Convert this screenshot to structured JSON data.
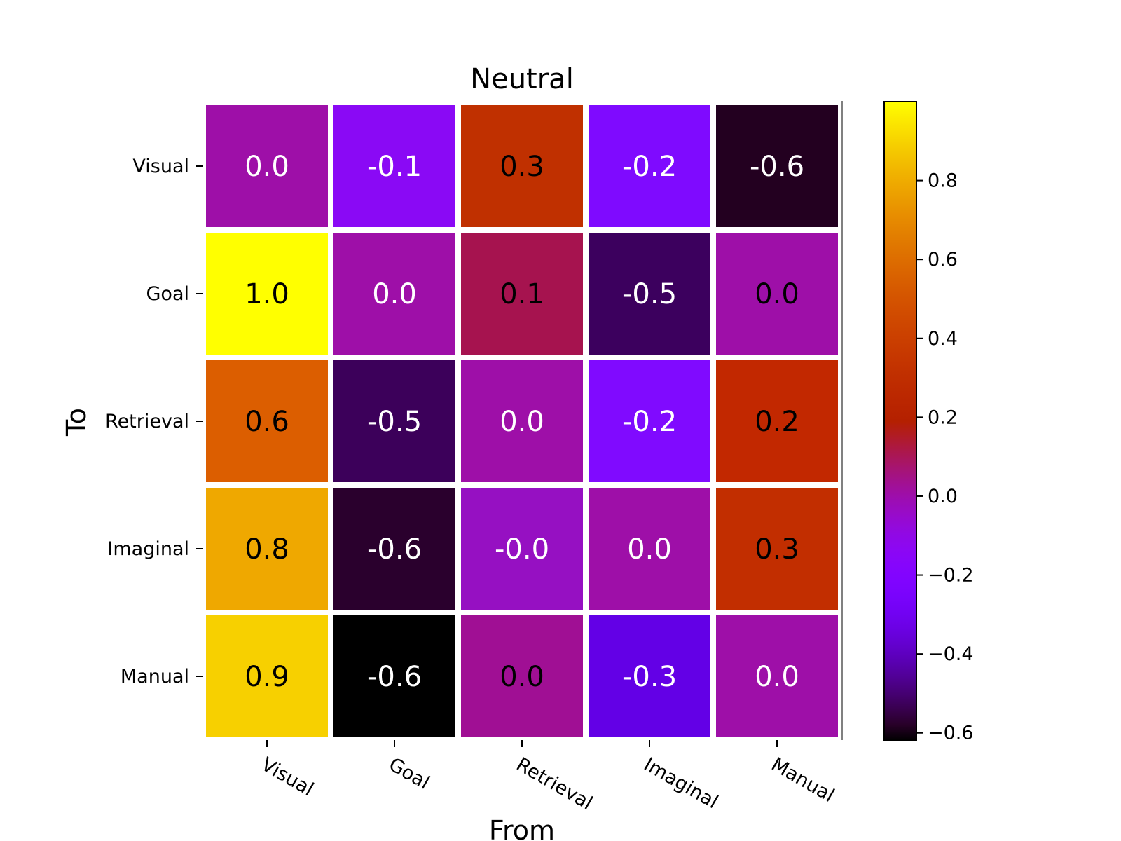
{
  "chart_data": {
    "type": "heatmap",
    "title": "Neutral",
    "xlabel": "From",
    "ylabel": "To",
    "x_categories": [
      "Visual",
      "Goal",
      "Retrieval",
      "Imaginal",
      "Manual"
    ],
    "y_categories": [
      "Visual",
      "Goal",
      "Retrieval",
      "Imaginal",
      "Manual"
    ],
    "values": [
      [
        0.0,
        -0.1,
        0.3,
        -0.2,
        -0.6
      ],
      [
        1.0,
        0.0,
        0.1,
        -0.5,
        0.0
      ],
      [
        0.6,
        -0.5,
        0.0,
        -0.2,
        0.2
      ],
      [
        0.8,
        -0.6,
        -0.0,
        0.0,
        0.3
      ],
      [
        0.9,
        -0.6,
        0.0,
        -0.3,
        0.0
      ]
    ],
    "cell_labels": [
      [
        "0.0",
        "-0.1",
        "0.3",
        "-0.2",
        "-0.6"
      ],
      [
        "1.0",
        "0.0",
        "0.1",
        "-0.5",
        "0.0"
      ],
      [
        "0.6",
        "-0.5",
        "0.0",
        "-0.2",
        "0.2"
      ],
      [
        "0.8",
        "-0.6",
        "-0.0",
        "0.0",
        "0.3"
      ],
      [
        "0.9",
        "-0.6",
        "0.0",
        "-0.3",
        "0.0"
      ]
    ],
    "cell_colors": [
      [
        "#9e0fa8",
        "#8a09f5",
        "#c03000",
        "#7f0aff",
        "#230020"
      ],
      [
        "#ffff00",
        "#9e0fa8",
        "#a6134f",
        "#3c005e",
        "#9e0fa8"
      ],
      [
        "#dc5e00",
        "#3c005a",
        "#9e0fa8",
        "#800aff",
        "#c22800"
      ],
      [
        "#efa800",
        "#2a002d",
        "#9610c2",
        "#9e0fa8",
        "#c22e00"
      ],
      [
        "#f7d000",
        "#000000",
        "#a00f94",
        "#6300e6",
        "#9e0fa8"
      ]
    ],
    "cell_text_colors": [
      [
        "#ffffff",
        "#ffffff",
        "#000000",
        "#ffffff",
        "#ffffff"
      ],
      [
        "#000000",
        "#ffffff",
        "#000000",
        "#ffffff",
        "#000000"
      ],
      [
        "#000000",
        "#ffffff",
        "#ffffff",
        "#ffffff",
        "#000000"
      ],
      [
        "#000000",
        "#ffffff",
        "#ffffff",
        "#ffffff",
        "#000000"
      ],
      [
        "#000000",
        "#ffffff",
        "#000000",
        "#ffffff",
        "#ffffff"
      ]
    ],
    "colormap": "gnuplot",
    "colorbar": {
      "range": [
        -0.62,
        1.0
      ],
      "ticks": [
        -0.6,
        -0.4,
        -0.2,
        0.0,
        0.2,
        0.4,
        0.6,
        0.8
      ],
      "tick_labels": [
        "−0.6",
        "−0.4",
        "−0.2",
        "0.0",
        "0.2",
        "0.4",
        "0.6",
        "0.8"
      ]
    },
    "legend": "colorbar-right",
    "grid": false
  }
}
